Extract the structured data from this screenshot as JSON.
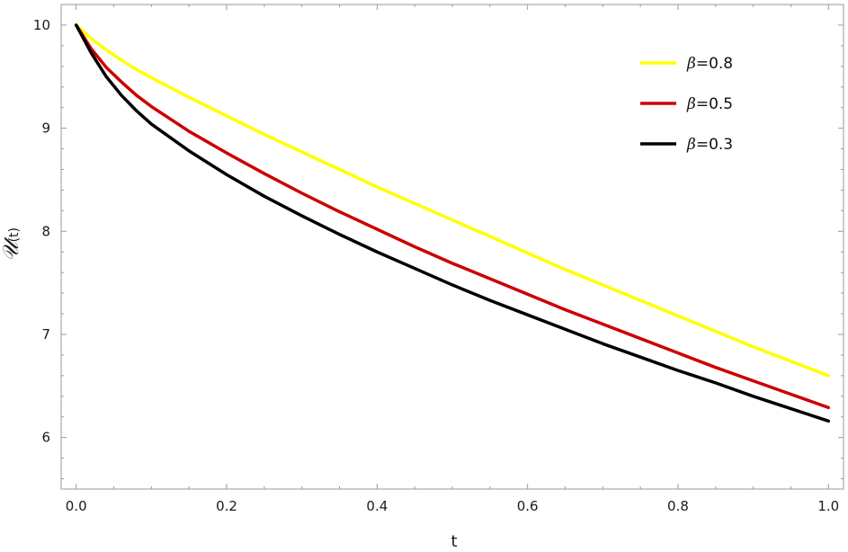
{
  "chart_data": {
    "type": "line",
    "xlabel": "t",
    "ylabel": {
      "symbol": "𝒰",
      "argument": "(t)"
    },
    "xlim": [
      -0.02,
      1.02
    ],
    "ylim": [
      5.5,
      10.2
    ],
    "x_ticks": [
      0.0,
      0.2,
      0.4,
      0.6,
      0.8,
      1.0
    ],
    "x_tick_labels": [
      "0.0",
      "0.2",
      "0.4",
      "0.6",
      "0.8",
      "1.0"
    ],
    "y_ticks": [
      6,
      7,
      8,
      9,
      10
    ],
    "y_tick_labels": [
      "6",
      "7",
      "8",
      "9",
      "10"
    ],
    "grid": false,
    "legend_position": "top-right",
    "x": [
      0.0,
      0.02,
      0.04,
      0.06,
      0.08,
      0.1,
      0.15,
      0.2,
      0.25,
      0.3,
      0.35,
      0.4,
      0.45,
      0.5,
      0.55,
      0.6,
      0.65,
      0.7,
      0.75,
      0.8,
      0.85,
      0.9,
      0.95,
      1.0
    ],
    "series": [
      {
        "name": "β=0.8",
        "symbol": "β",
        "label": "=0.8",
        "color": "#ffff00",
        "values": [
          10.0,
          9.87,
          9.76,
          9.66,
          9.57,
          9.49,
          9.3,
          9.12,
          8.94,
          8.77,
          8.6,
          8.43,
          8.27,
          8.11,
          7.95,
          7.79,
          7.63,
          7.48,
          7.33,
          7.18,
          7.03,
          6.88,
          6.74,
          6.6
        ]
      },
      {
        "name": "β=0.5",
        "symbol": "β",
        "label": "=0.5",
        "color": "#cc0000",
        "values": [
          10.0,
          9.77,
          9.59,
          9.45,
          9.32,
          9.21,
          8.97,
          8.76,
          8.56,
          8.37,
          8.19,
          8.02,
          7.85,
          7.69,
          7.54,
          7.39,
          7.24,
          7.1,
          6.96,
          6.82,
          6.68,
          6.55,
          6.42,
          6.29
        ]
      },
      {
        "name": "β=0.3",
        "symbol": "β",
        "label": "=0.3",
        "color": "#000000",
        "values": [
          10.0,
          9.73,
          9.5,
          9.32,
          9.17,
          9.04,
          8.78,
          8.55,
          8.34,
          8.15,
          7.97,
          7.8,
          7.64,
          7.48,
          7.33,
          7.19,
          7.05,
          6.91,
          6.78,
          6.65,
          6.53,
          6.4,
          6.28,
          6.16
        ]
      }
    ]
  }
}
